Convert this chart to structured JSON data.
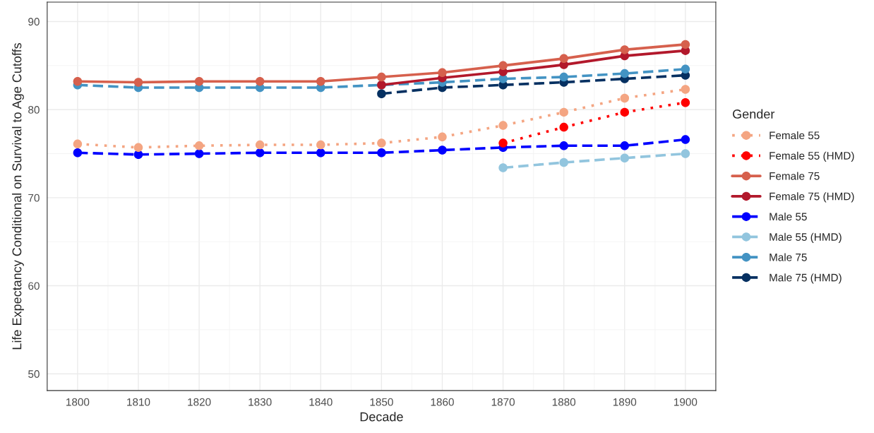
{
  "chart_data": {
    "type": "line",
    "xlabel": "Decade",
    "ylabel": "Life Expectancy Conditional on Survival to Age Cutoffs",
    "legend_title": "Gender",
    "x": [
      1800,
      1810,
      1820,
      1830,
      1840,
      1850,
      1860,
      1870,
      1880,
      1890,
      1900
    ],
    "series": [
      {
        "name": "Female 55",
        "color": "#f4a582",
        "line_style": "dotted",
        "values": [
          76.1,
          75.7,
          75.9,
          76.0,
          76.0,
          76.2,
          76.9,
          78.2,
          79.7,
          81.3,
          82.3
        ]
      },
      {
        "name": "Female 55 (HMD)",
        "color": "#ff0000",
        "line_style": "dotted",
        "values": [
          null,
          null,
          null,
          null,
          null,
          null,
          null,
          76.2,
          78.0,
          79.7,
          80.8
        ]
      },
      {
        "name": "Female 75",
        "color": "#d6604d",
        "line_style": "solid",
        "values": [
          83.2,
          83.1,
          83.2,
          83.2,
          83.2,
          83.7,
          84.2,
          85.0,
          85.8,
          86.8,
          87.4
        ]
      },
      {
        "name": "Female 75 (HMD)",
        "color": "#b2182b",
        "line_style": "solid",
        "values": [
          null,
          null,
          null,
          null,
          null,
          82.8,
          83.6,
          84.3,
          85.1,
          86.1,
          86.7
        ]
      },
      {
        "name": "Male 55",
        "color": "#0000ff",
        "line_style": "dashed",
        "values": [
          75.1,
          74.9,
          75.0,
          75.1,
          75.1,
          75.1,
          75.4,
          75.7,
          75.9,
          75.9,
          76.6
        ]
      },
      {
        "name": "Male 55 (HMD)",
        "color": "#92c5de",
        "line_style": "dashed",
        "values": [
          null,
          null,
          null,
          null,
          null,
          null,
          null,
          73.4,
          74.0,
          74.5,
          75.0
        ]
      },
      {
        "name": "Male 75",
        "color": "#4393c3",
        "line_style": "dashed",
        "values": [
          82.8,
          82.5,
          82.5,
          82.5,
          82.5,
          82.8,
          83.1,
          83.5,
          83.7,
          84.1,
          84.6
        ]
      },
      {
        "name": "Male 75 (HMD)",
        "color": "#053061",
        "line_style": "dashed",
        "values": [
          null,
          null,
          null,
          null,
          null,
          81.8,
          82.5,
          82.8,
          83.1,
          83.5,
          83.9
        ]
      }
    ],
    "xlim": [
      1795,
      1905
    ],
    "xticks": [
      1800,
      1810,
      1820,
      1830,
      1840,
      1850,
      1860,
      1870,
      1880,
      1890,
      1900
    ],
    "ylim": [
      48.1,
      92.2
    ],
    "yticks": [
      50,
      60,
      70,
      80,
      90
    ],
    "marker": "circle",
    "grid": true,
    "legend": "right"
  }
}
